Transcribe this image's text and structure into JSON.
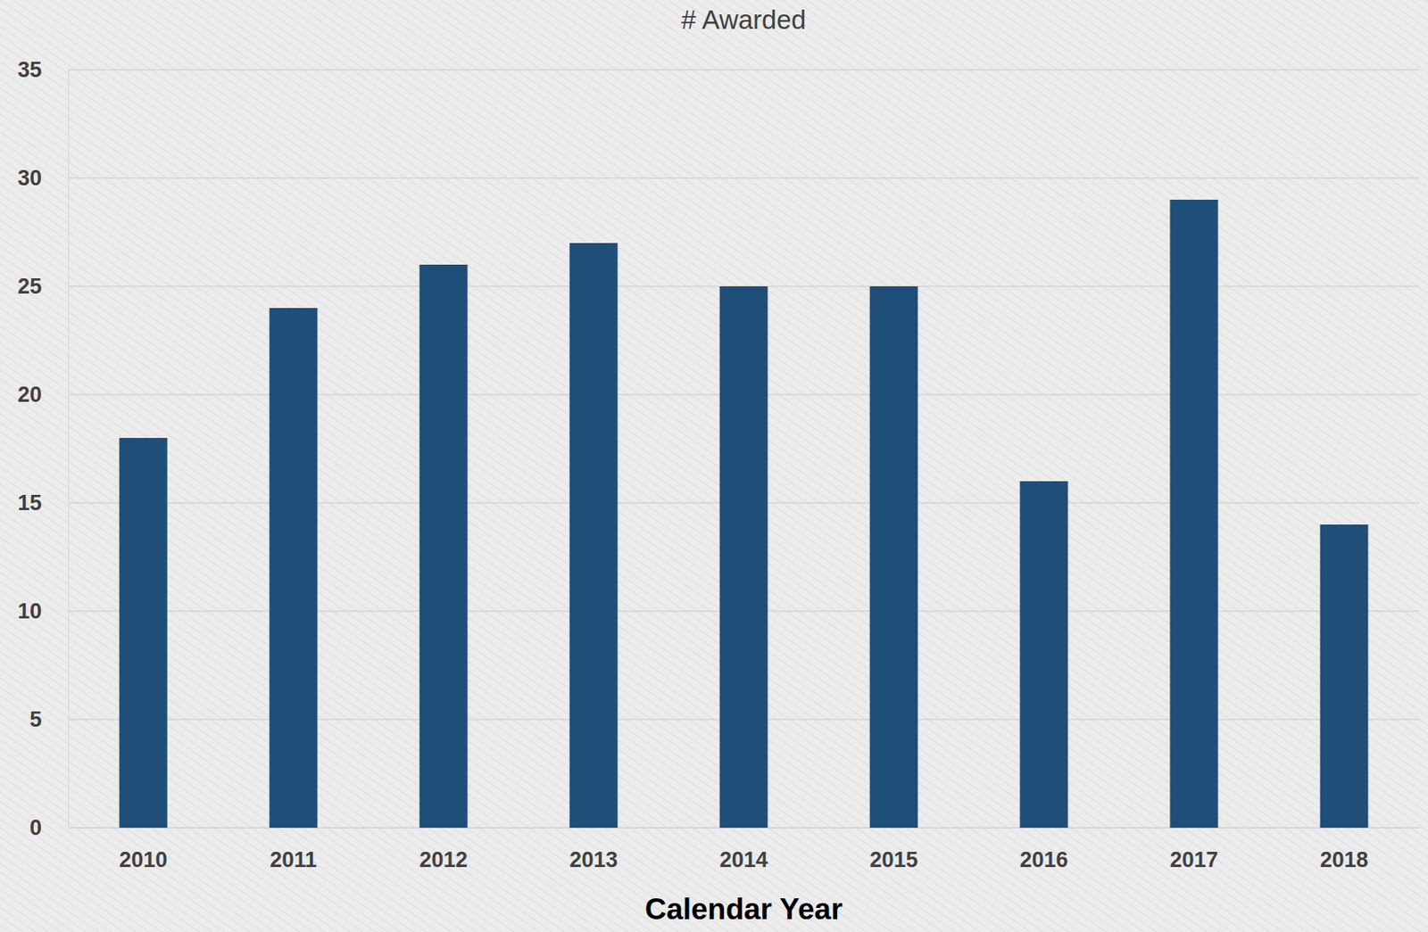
{
  "chart_data": {
    "type": "bar",
    "title": "# Awarded",
    "x_label": "Calendar Year",
    "categories": [
      "2010",
      "2011",
      "2012",
      "2013",
      "2014",
      "2015",
      "2016",
      "2017",
      "2018"
    ],
    "values": [
      18,
      24,
      26,
      27,
      25,
      25,
      16,
      29,
      14
    ],
    "color": "#1f4e79",
    "ylim": [
      0,
      35
    ],
    "yticks": [
      0,
      5,
      10,
      15,
      20,
      25,
      30,
      35
    ],
    "grid": true
  }
}
